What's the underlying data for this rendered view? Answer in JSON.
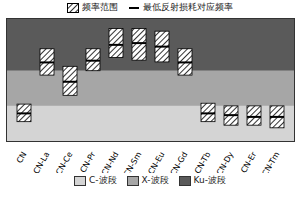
{
  "chart_data": {
    "type": "floating_bar",
    "categories": [
      "CN",
      "CN-La",
      "CN-Ce",
      "CN-Pr",
      "CN-Nd",
      "CN-Sm",
      "CN-Eu",
      "CN-Gd",
      "CN-Tb",
      "CN-Dy",
      "CN-Er",
      "CN-Tm"
    ],
    "series": [
      {
        "name": "频率范围",
        "color": "#000000",
        "low": [
          6.2,
          11.5,
          9.2,
          12.0,
          13.5,
          13.2,
          13.0,
          11.5,
          6.2,
          5.8,
          5.8,
          5.5
        ],
        "high": [
          8.2,
          14.5,
          12.5,
          14.5,
          16.8,
          16.8,
          16.5,
          14.5,
          8.3,
          8.0,
          8.0,
          8.0
        ]
      },
      {
        "name": "最低反射损耗对应频率",
        "color": "#000000",
        "marker": "line",
        "values": [
          7.2,
          13.0,
          10.8,
          13.2,
          15.0,
          15.2,
          14.8,
          13.0,
          7.2,
          7.0,
          6.8,
          6.8
        ]
      }
    ],
    "bands": [
      {
        "name": "C-波段",
        "range": [
          4,
          8
        ],
        "color": "#d4d4d4"
      },
      {
        "name": "X-波段",
        "range": [
          8,
          12
        ],
        "color": "#a6a6a6"
      },
      {
        "name": "Ku-波段",
        "range": [
          12,
          18
        ],
        "color": "#5a5a5a"
      }
    ],
    "ylim": [
      4,
      18
    ],
    "tick_labels": "x"
  }
}
